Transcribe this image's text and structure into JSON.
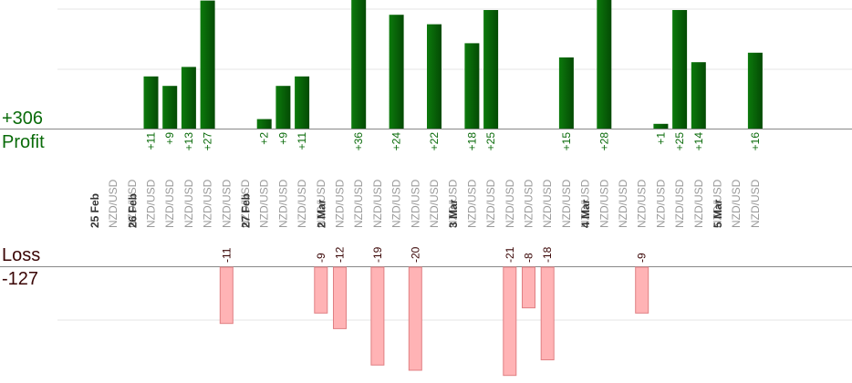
{
  "summary": {
    "profit_total": "+306",
    "profit_label": "Profit",
    "loss_label": "Loss",
    "loss_total": "-127"
  },
  "chart_data": {
    "type": "bar",
    "categories": [
      {
        "date": "25 Feb",
        "pair": "NZD/USD",
        "profit": null,
        "loss": null
      },
      {
        "date": "",
        "pair": "NZD/USD",
        "profit": null,
        "loss": null
      },
      {
        "date": "26 Feb",
        "pair": "NZD/USD",
        "profit": 11,
        "loss": null
      },
      {
        "date": "",
        "pair": "NZD/USD",
        "profit": 9,
        "loss": null
      },
      {
        "date": "",
        "pair": "NZD/USD",
        "profit": 13,
        "loss": null
      },
      {
        "date": "",
        "pair": "NZD/USD",
        "profit": 27,
        "loss": null
      },
      {
        "date": "",
        "pair": "NZD/USD",
        "profit": null,
        "loss": -11
      },
      {
        "date": "",
        "pair": "NZD/USD",
        "profit": null,
        "loss": null
      },
      {
        "date": "27 Feb",
        "pair": "NZD/USD",
        "profit": 2,
        "loss": null
      },
      {
        "date": "",
        "pair": "NZD/USD",
        "profit": 9,
        "loss": null
      },
      {
        "date": "",
        "pair": "NZD/USD",
        "profit": 11,
        "loss": null
      },
      {
        "date": "",
        "pair": "NZD/USD",
        "profit": null,
        "loss": -9
      },
      {
        "date": "2 Mar",
        "pair": "NZD/USD",
        "profit": null,
        "loss": -12
      },
      {
        "date": "",
        "pair": "NZD/USD",
        "profit": 36,
        "loss": null
      },
      {
        "date": "",
        "pair": "NZD/USD",
        "profit": null,
        "loss": -19
      },
      {
        "date": "",
        "pair": "NZD/USD",
        "profit": 24,
        "loss": null
      },
      {
        "date": "",
        "pair": "NZD/USD",
        "profit": null,
        "loss": -20
      },
      {
        "date": "",
        "pair": "NZD/USD",
        "profit": 22,
        "loss": null
      },
      {
        "date": "",
        "pair": "NZD/USD",
        "profit": null,
        "loss": null
      },
      {
        "date": "3 Mar",
        "pair": "NZD/USD",
        "profit": 18,
        "loss": null
      },
      {
        "date": "",
        "pair": "NZD/USD",
        "profit": 25,
        "loss": null
      },
      {
        "date": "",
        "pair": "NZD/USD",
        "profit": null,
        "loss": -21
      },
      {
        "date": "",
        "pair": "NZD/USD",
        "profit": null,
        "loss": -8
      },
      {
        "date": "",
        "pair": "NZD/USD",
        "profit": null,
        "loss": -18
      },
      {
        "date": "",
        "pair": "NZD/USD",
        "profit": 15,
        "loss": null
      },
      {
        "date": "",
        "pair": "NZD/USD",
        "profit": null,
        "loss": null
      },
      {
        "date": "4 Mar",
        "pair": "NZD/USD",
        "profit": 28,
        "loss": null
      },
      {
        "date": "",
        "pair": "NZD/USD",
        "profit": null,
        "loss": null
      },
      {
        "date": "",
        "pair": "NZD/USD",
        "profit": null,
        "loss": -9
      },
      {
        "date": "",
        "pair": "NZD/USD",
        "profit": 1,
        "loss": null
      },
      {
        "date": "",
        "pair": "NZD/USD",
        "profit": 25,
        "loss": null
      },
      {
        "date": "",
        "pair": "NZD/USD",
        "profit": 14,
        "loss": null
      },
      {
        "date": "",
        "pair": "NZD/USD",
        "profit": null,
        "loss": null
      },
      {
        "date": "5 Mar",
        "pair": "NZD/USD",
        "profit": null,
        "loss": null
      },
      {
        "date": "",
        "pair": "NZD/USD",
        "profit": 16,
        "loss": null
      }
    ],
    "profit_value_labels": [
      "+11",
      "+9",
      "+13",
      "+27",
      "+2",
      "+9",
      "+11",
      "+36",
      "+24",
      "+22",
      "+18",
      "+25",
      "+15",
      "+28",
      "+1",
      "+25",
      "+14",
      "+16"
    ],
    "loss_value_labels": [
      "-11",
      "-9",
      "-12",
      "-19",
      "-20",
      "-21",
      "-8",
      "-18",
      "-9"
    ],
    "profit_axis_visible_max": 22,
    "loss_axis_visible_min": -22,
    "grid": true,
    "colors": {
      "profit_bar": "#0a6b0a",
      "profit_label": "#0a6b0a",
      "loss_bar": "#ffb3b5",
      "loss_bar_border": "#e07f83",
      "loss_label": "#3a0505",
      "pair_text": "#9a9a9a",
      "date_text": "#333333",
      "gridline": "#e6e6e6",
      "baseline": "#888888"
    }
  }
}
